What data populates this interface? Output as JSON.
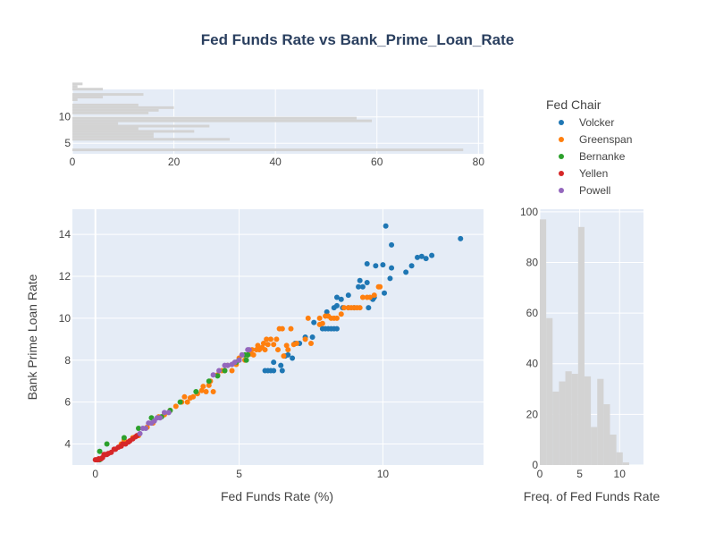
{
  "chart_data": {
    "type": "scatter",
    "title": "Fed Funds Rate vs Bank_Prime_Loan_Rate",
    "xlabel": "Fed Funds Rate (%)",
    "ylabel": "Bank Prime Loan Rate",
    "xlim": [
      -0.8,
      13.5
    ],
    "ylim": [
      3.0,
      15.2
    ],
    "xticks": [
      0,
      5,
      10
    ],
    "yticks": [
      4,
      6,
      8,
      10,
      12,
      14
    ],
    "grid": true,
    "legend": {
      "title": "Fed Chair",
      "placement": "top-right"
    },
    "series": [
      {
        "name": "Volcker",
        "color": "#1f77b4",
        "points": [
          [
            5.9,
            7.5
          ],
          [
            6.0,
            7.5
          ],
          [
            6.1,
            7.5
          ],
          [
            6.2,
            7.5
          ],
          [
            6.5,
            7.5
          ],
          [
            6.2,
            7.9
          ],
          [
            6.45,
            7.75
          ],
          [
            6.6,
            8.2
          ],
          [
            6.7,
            8.25
          ],
          [
            6.85,
            8.1
          ],
          [
            6.95,
            8.8
          ],
          [
            7.1,
            8.8
          ],
          [
            7.3,
            9.1
          ],
          [
            7.55,
            9.1
          ],
          [
            7.6,
            9.8
          ],
          [
            7.9,
            9.5
          ],
          [
            8.0,
            9.5
          ],
          [
            8.1,
            9.5
          ],
          [
            8.2,
            9.5
          ],
          [
            8.3,
            9.5
          ],
          [
            8.4,
            9.5
          ],
          [
            8.05,
            10.3
          ],
          [
            8.3,
            10.5
          ],
          [
            8.4,
            10.6
          ],
          [
            8.6,
            10.5
          ],
          [
            8.8,
            10.5
          ],
          [
            9.0,
            10.5
          ],
          [
            8.4,
            11.0
          ],
          [
            8.55,
            10.9
          ],
          [
            8.8,
            11.1
          ],
          [
            9.15,
            11.5
          ],
          [
            9.3,
            11.5
          ],
          [
            9.2,
            11.8
          ],
          [
            9.45,
            11.7
          ],
          [
            9.7,
            11.0
          ],
          [
            9.5,
            10.5
          ],
          [
            9.65,
            10.9
          ],
          [
            10.05,
            11.2
          ],
          [
            9.45,
            12.6
          ],
          [
            9.75,
            12.5
          ],
          [
            10.0,
            12.55
          ],
          [
            10.3,
            12.4
          ],
          [
            10.1,
            14.4
          ],
          [
            10.3,
            13.5
          ],
          [
            10.25,
            11.9
          ],
          [
            10.8,
            12.2
          ],
          [
            11.0,
            12.5
          ],
          [
            11.2,
            12.9
          ],
          [
            11.35,
            12.95
          ],
          [
            11.5,
            12.85
          ],
          [
            11.7,
            13.0
          ],
          [
            12.7,
            13.8
          ]
        ]
      },
      {
        "name": "Greenspan",
        "color": "#ff7f0e",
        "points": [
          [
            0.9,
            4.0
          ],
          [
            1.0,
            4.2
          ],
          [
            1.3,
            4.3
          ],
          [
            1.5,
            4.4
          ],
          [
            1.8,
            4.8
          ],
          [
            2.0,
            5.0
          ],
          [
            2.2,
            5.3
          ],
          [
            2.4,
            5.4
          ],
          [
            2.6,
            5.6
          ],
          [
            2.8,
            5.8
          ],
          [
            3.0,
            6.0
          ],
          [
            3.1,
            6.25
          ],
          [
            3.2,
            6.0
          ],
          [
            3.3,
            6.2
          ],
          [
            3.4,
            6.25
          ],
          [
            3.55,
            6.4
          ],
          [
            3.7,
            6.55
          ],
          [
            3.75,
            6.75
          ],
          [
            3.85,
            6.5
          ],
          [
            3.95,
            6.8
          ],
          [
            4.1,
            6.5
          ],
          [
            4.0,
            7.0
          ],
          [
            4.25,
            7.3
          ],
          [
            4.4,
            7.5
          ],
          [
            4.5,
            7.5
          ],
          [
            4.6,
            7.75
          ],
          [
            4.75,
            7.5
          ],
          [
            4.9,
            7.8
          ],
          [
            5.0,
            8.1
          ],
          [
            5.1,
            8.25
          ],
          [
            5.2,
            8.0
          ],
          [
            5.3,
            8.25
          ],
          [
            5.4,
            8.3
          ],
          [
            5.45,
            8.5
          ],
          [
            5.5,
            8.25
          ],
          [
            5.6,
            8.5
          ],
          [
            5.65,
            8.7
          ],
          [
            5.7,
            8.5
          ],
          [
            5.8,
            8.6
          ],
          [
            5.85,
            8.8
          ],
          [
            5.9,
            8.5
          ],
          [
            5.95,
            9.0
          ],
          [
            6.0,
            8.75
          ],
          [
            6.1,
            9.0
          ],
          [
            6.2,
            8.75
          ],
          [
            6.3,
            9.0
          ],
          [
            6.4,
            9.5
          ],
          [
            6.5,
            9.5
          ],
          [
            6.35,
            8.5
          ],
          [
            6.55,
            8.2
          ],
          [
            6.65,
            8.7
          ],
          [
            6.7,
            8.5
          ],
          [
            6.8,
            9.5
          ],
          [
            6.9,
            8.75
          ],
          [
            7.0,
            8.8
          ],
          [
            7.3,
            9.0
          ],
          [
            7.5,
            8.8
          ],
          [
            7.4,
            10.0
          ],
          [
            7.8,
            9.7
          ],
          [
            7.8,
            10.0
          ],
          [
            7.9,
            9.75
          ],
          [
            8.0,
            10.1
          ],
          [
            8.1,
            10.1
          ],
          [
            8.2,
            10.0
          ],
          [
            8.3,
            10.0
          ],
          [
            8.4,
            10.0
          ],
          [
            8.55,
            10.2
          ],
          [
            8.65,
            10.5
          ],
          [
            8.8,
            10.5
          ],
          [
            8.9,
            10.5
          ],
          [
            9.0,
            10.5
          ],
          [
            9.1,
            10.5
          ],
          [
            9.2,
            10.5
          ],
          [
            9.3,
            11.0
          ],
          [
            9.45,
            11.0
          ],
          [
            9.55,
            11.0
          ],
          [
            9.7,
            11.1
          ],
          [
            9.85,
            11.5
          ],
          [
            9.9,
            11.5
          ]
        ]
      },
      {
        "name": "Bernanke",
        "color": "#2ca02c",
        "points": [
          [
            0.15,
            3.25
          ],
          [
            0.15,
            3.65
          ],
          [
            0.4,
            4.0
          ],
          [
            1.0,
            4.3
          ],
          [
            1.5,
            4.75
          ],
          [
            1.95,
            5.25
          ],
          [
            2.3,
            5.3
          ],
          [
            2.6,
            5.6
          ],
          [
            2.95,
            6.0
          ],
          [
            3.5,
            6.5
          ],
          [
            3.95,
            7.0
          ],
          [
            4.25,
            7.25
          ],
          [
            4.5,
            7.5
          ],
          [
            4.9,
            7.9
          ],
          [
            5.0,
            8.0
          ],
          [
            5.2,
            8.25
          ],
          [
            5.25,
            8.0
          ],
          [
            5.3,
            8.25
          ]
        ]
      },
      {
        "name": "Yellen",
        "color": "#d62728",
        "points": [
          [
            0.0,
            3.25
          ],
          [
            0.05,
            3.25
          ],
          [
            0.1,
            3.25
          ],
          [
            0.12,
            3.3
          ],
          [
            0.2,
            3.3
          ],
          [
            0.25,
            3.35
          ],
          [
            0.3,
            3.5
          ],
          [
            0.35,
            3.5
          ],
          [
            0.4,
            3.5
          ],
          [
            0.45,
            3.55
          ],
          [
            0.55,
            3.6
          ],
          [
            0.65,
            3.75
          ],
          [
            0.7,
            3.75
          ],
          [
            0.8,
            3.85
          ],
          [
            0.9,
            3.9
          ],
          [
            0.95,
            4.0
          ],
          [
            1.05,
            4.0
          ],
          [
            1.15,
            4.1
          ],
          [
            1.2,
            4.15
          ],
          [
            1.3,
            4.25
          ],
          [
            1.4,
            4.35
          ],
          [
            1.45,
            4.4
          ]
        ]
      },
      {
        "name": "Powell",
        "color": "#9467bd",
        "points": [
          [
            1.55,
            4.5
          ],
          [
            1.65,
            4.75
          ],
          [
            1.75,
            4.75
          ],
          [
            1.85,
            5.0
          ],
          [
            1.95,
            5.0
          ],
          [
            2.05,
            5.1
          ],
          [
            2.15,
            5.25
          ],
          [
            2.25,
            5.25
          ],
          [
            2.4,
            5.5
          ],
          [
            2.55,
            5.5
          ],
          [
            4.1,
            7.3
          ],
          [
            4.3,
            7.5
          ],
          [
            4.5,
            7.75
          ],
          [
            4.6,
            7.75
          ],
          [
            4.75,
            7.8
          ],
          [
            4.85,
            7.9
          ],
          [
            5.0,
            8.0
          ],
          [
            5.1,
            8.25
          ],
          [
            5.3,
            8.5
          ],
          [
            5.35,
            8.5
          ]
        ]
      }
    ],
    "top_histogram": {
      "xlim": [
        0,
        81
      ],
      "xticks": [
        0,
        20,
        40,
        60,
        80
      ],
      "ylim": [
        3.0,
        15.2
      ],
      "yticks": [
        5,
        10
      ],
      "bin_width": 0.5,
      "bin_start": 3.0,
      "counts": [
        0,
        77,
        0,
        0,
        0,
        31,
        16,
        16,
        24,
        13,
        27,
        9,
        59,
        56,
        0,
        15,
        17,
        20,
        13,
        0,
        1,
        6,
        14,
        0,
        6,
        1,
        2
      ]
    },
    "right_histogram": {
      "xlim": [
        0,
        13
      ],
      "xticks": [
        0,
        5,
        10
      ],
      "ylim": [
        0,
        101
      ],
      "yticks": [
        0,
        20,
        40,
        60,
        80,
        100
      ],
      "xlabel": "Freq. of Fed Funds Rate",
      "bin_width": 0.8,
      "bin_start": 0,
      "counts": [
        97,
        58,
        29,
        33,
        37,
        36,
        94,
        35,
        15,
        34,
        24,
        12,
        5,
        1
      ]
    }
  },
  "colors": {
    "plot_bg": "#e5ecf6",
    "grid": "#ffffff",
    "hist_bar": "#d3d3d3",
    "text": "#444444",
    "title": "#2a3f5f"
  }
}
